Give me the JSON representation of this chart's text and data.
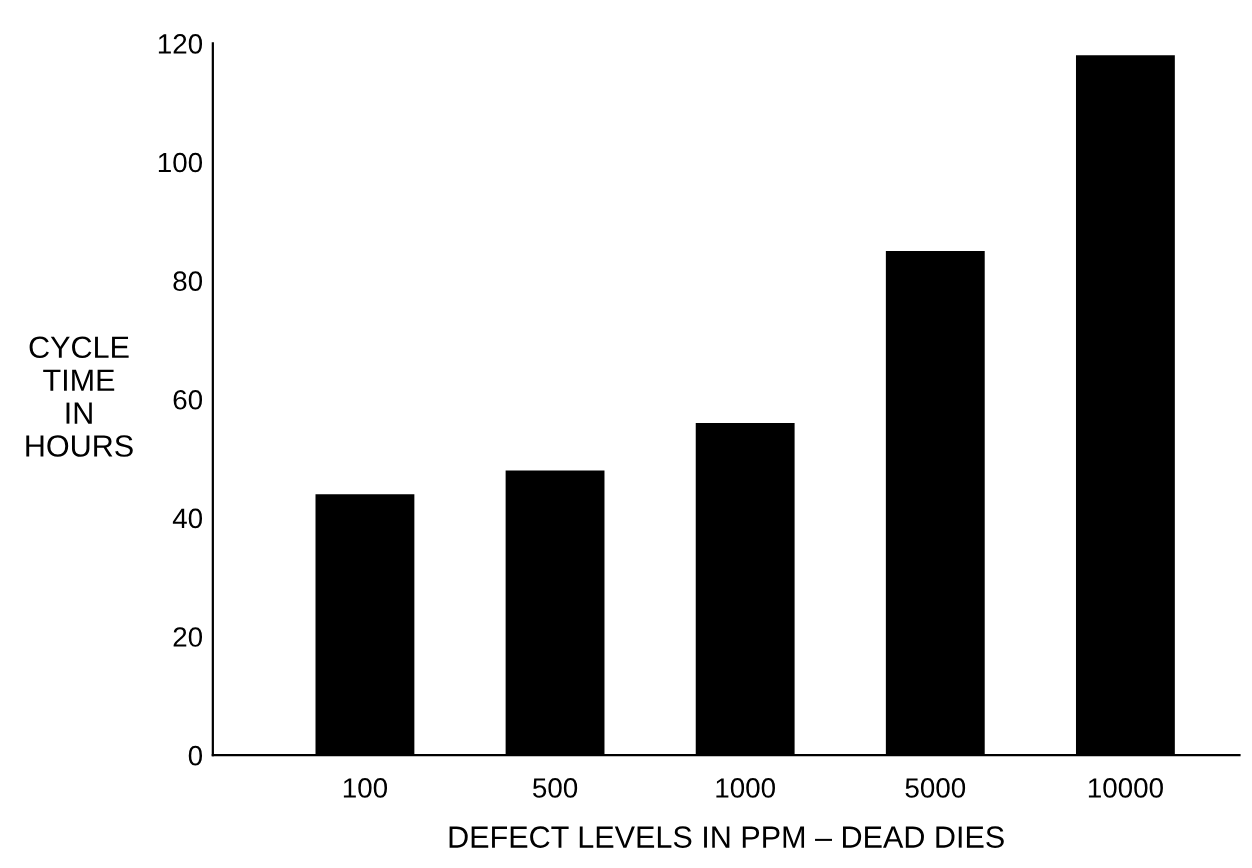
{
  "chart_data": {
    "type": "bar",
    "xlabel": "DEFECT LEVELS IN PPM – DEAD DIES",
    "ylabel": "CYCLE\nTIME\nIN\nHOURS",
    "categories": [
      "100",
      "500",
      "1000",
      "5000",
      "10000"
    ],
    "values": [
      44,
      48,
      56,
      85,
      118
    ],
    "color": "#000000",
    "ylim": [
      0,
      120
    ],
    "yticks": [
      0,
      20,
      40,
      60,
      80,
      100,
      120
    ],
    "grid": false
  }
}
